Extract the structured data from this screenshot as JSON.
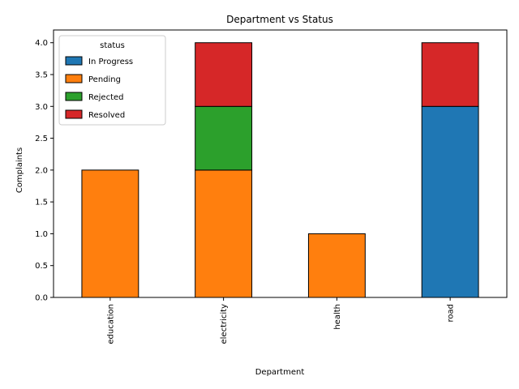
{
  "chart_data": {
    "type": "bar",
    "stacked": true,
    "title": "Department vs Status",
    "xlabel": "Department",
    "ylabel": "Complaints",
    "categories": [
      "education",
      "electricity",
      "health",
      "road"
    ],
    "ylim": [
      0,
      4.2
    ],
    "yticks": [
      "0.0",
      "0.5",
      "1.0",
      "1.5",
      "2.0",
      "2.5",
      "3.0",
      "3.5",
      "4.0"
    ],
    "grid": false,
    "legend": {
      "title": "status",
      "placement": "top-left"
    },
    "series": [
      {
        "name": "In Progress",
        "color": "#1f77b4",
        "values": [
          0,
          0,
          0,
          3
        ]
      },
      {
        "name": "Pending",
        "color": "#ff7f0e",
        "values": [
          2,
          2,
          1,
          0
        ]
      },
      {
        "name": "Rejected",
        "color": "#2ca02c",
        "values": [
          0,
          1,
          0,
          0
        ]
      },
      {
        "name": "Resolved",
        "color": "#d62728",
        "values": [
          0,
          1,
          0,
          1
        ]
      }
    ]
  }
}
